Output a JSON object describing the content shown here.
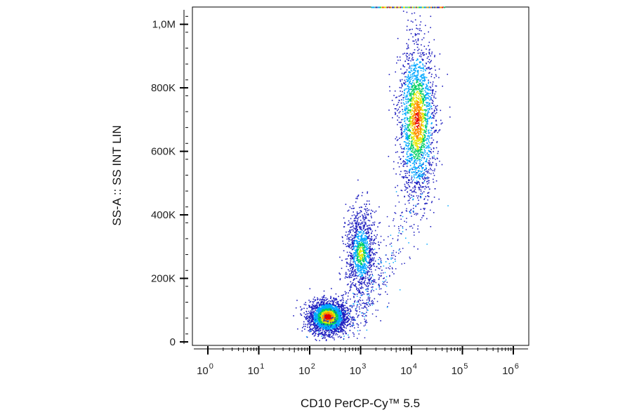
{
  "chart_data": {
    "type": "scatter",
    "title": "",
    "xlabel": "CD10 PerCP-Cy™ 5.5",
    "ylabel": "SS-A :: SS INT LIN",
    "x_scale": "log",
    "x_range": [
      1,
      1000000
    ],
    "x_ticks": [
      {
        "base": "10",
        "exp": "0"
      },
      {
        "base": "10",
        "exp": "1"
      },
      {
        "base": "10",
        "exp": "2"
      },
      {
        "base": "10",
        "exp": "3"
      },
      {
        "base": "10",
        "exp": "4"
      },
      {
        "base": "10",
        "exp": "5"
      },
      {
        "base": "10",
        "exp": "6"
      }
    ],
    "y_scale": "linear",
    "y_range": [
      0,
      1050000
    ],
    "y_ticks": [
      {
        "value": 0,
        "label": "0"
      },
      {
        "value": 200000,
        "label": "200K"
      },
      {
        "value": 400000,
        "label": "400K"
      },
      {
        "value": 600000,
        "label": "600K"
      },
      {
        "value": 800000,
        "label": "800K"
      },
      {
        "value": 1000000,
        "label": "1,0M"
      }
    ],
    "grid": false,
    "color_scale": [
      "#1f1fbf",
      "#00a8ff",
      "#00d060",
      "#e6e600",
      "#ff8c00",
      "#e60000"
    ],
    "populations": [
      {
        "center_log10_x": 2.35,
        "center_y": 80000,
        "spread_log10_x": 0.18,
        "spread_y": 25000,
        "relative_density": 1.0
      },
      {
        "center_log10_x": 3.0,
        "center_y": 280000,
        "spread_log10_x": 0.15,
        "spread_y": 70000,
        "relative_density": 0.45
      },
      {
        "center_log10_x": 4.1,
        "center_y": 700000,
        "spread_log10_x": 0.18,
        "spread_y": 120000,
        "relative_density": 0.8
      }
    ]
  }
}
